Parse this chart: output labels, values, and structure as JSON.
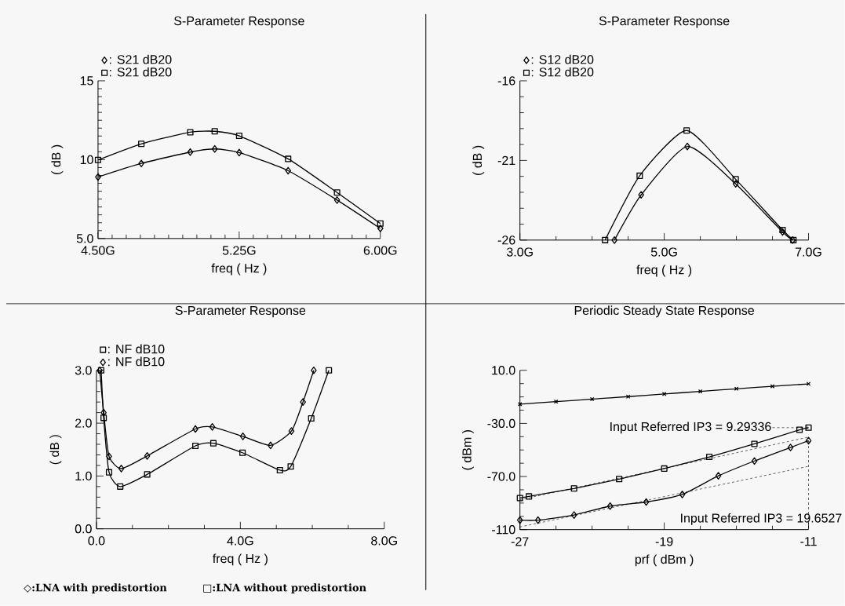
{
  "chart_data": [
    {
      "type": "line",
      "title": "S-Parameter Response",
      "xlabel": "freq ( Hz )",
      "ylabel": "( dB )",
      "legend": "top left",
      "xlim": [
        4.5,
        6.0
      ],
      "ylim": [
        5,
        15
      ],
      "xticks": [
        {
          "value": 4.5,
          "label": "4.50G"
        },
        {
          "value": 5.25,
          "label": "5.25G"
        },
        {
          "value": 6.0,
          "label": "6.00G"
        }
      ],
      "yticks": [
        {
          "value": 5,
          "label": "5.0"
        },
        10,
        15
      ],
      "series": [
        {
          "name": ": S21 dB20",
          "color": "#000000",
          "marker": "diamond",
          "x": [
            4.5,
            4.73,
            4.99,
            5.12,
            5.25,
            5.51,
            5.77,
            6.0
          ],
          "values": [
            8.9,
            9.76,
            10.48,
            10.68,
            10.45,
            9.3,
            7.44,
            5.64
          ]
        },
        {
          "name": ": S21 dB20",
          "color": "#000000",
          "marker": "square",
          "x": [
            4.5,
            4.73,
            4.99,
            5.12,
            5.25,
            5.51,
            5.77,
            6.0
          ],
          "values": [
            9.98,
            11.0,
            11.74,
            11.8,
            11.51,
            10.05,
            7.92,
            5.95
          ]
        }
      ]
    },
    {
      "type": "line",
      "title": "S-Parameter Response",
      "xlabel": "freq ( Hz )",
      "ylabel": "( dB )",
      "legend": "top left",
      "xlim": [
        3.0,
        7.0
      ],
      "ylim": [
        -26,
        -16
      ],
      "xticks": [
        {
          "value": 3,
          "label": "3.0G"
        },
        {
          "value": 5,
          "label": "5.0G"
        },
        {
          "value": 7,
          "label": "7.0G"
        }
      ],
      "yticks": [
        -26,
        -21,
        -16
      ],
      "series": [
        {
          "name": ": S12 dB20",
          "color": "#000000",
          "marker": "diamond",
          "x": [
            4.31,
            4.68,
            5.32,
            5.99,
            6.64,
            6.78
          ],
          "values": [
            -26,
            -23.16,
            -20.12,
            -22.47,
            -25.49,
            -26
          ]
        },
        {
          "name": ": S12 dB20",
          "color": "#000000",
          "marker": "square",
          "x": [
            4.18,
            4.66,
            5.31,
            5.99,
            6.64,
            6.79
          ],
          "values": [
            -26,
            -21.96,
            -19.12,
            -22.18,
            -25.37,
            -26
          ]
        }
      ]
    },
    {
      "type": "line",
      "title": "S-Parameter Response",
      "xlabel": "freq ( Hz )",
      "ylabel": "( dB )",
      "legend": "top left",
      "xlim": [
        0,
        8
      ],
      "ylim": [
        0,
        3
      ],
      "xticks": [
        {
          "value": 0,
          "label": "0.0"
        },
        {
          "value": 4,
          "label": "4.0G"
        },
        {
          "value": 8,
          "label": "8.0G"
        }
      ],
      "yticks": [
        {
          "value": 0,
          "label": "0.0"
        },
        {
          "value": 1,
          "label": "1.0"
        },
        {
          "value": 2,
          "label": "2.0"
        },
        {
          "value": 3,
          "label": "3.0"
        }
      ],
      "annotations": [
        "◇:LNA with predistortion",
        "□:LNA without predistortion"
      ],
      "series": [
        {
          "name": ": NF dB10",
          "color": "#000000",
          "marker": "square",
          "x": [
            0.13,
            0.2,
            0.35,
            0.66,
            1.41,
            2.75,
            3.25,
            4.06,
            5.1,
            5.4,
            5.97,
            6.46
          ],
          "values": [
            3.0,
            2.1,
            1.07,
            0.8,
            1.03,
            1.57,
            1.62,
            1.44,
            1.11,
            1.18,
            2.09,
            3.0
          ]
        },
        {
          "name": ": NF dB10",
          "color": "#000000",
          "marker": "diamond",
          "x": [
            0.09,
            0.2,
            0.35,
            0.69,
            1.41,
            2.75,
            3.22,
            4.07,
            4.84,
            5.42,
            5.74,
            6.04
          ],
          "values": [
            3.0,
            2.2,
            1.37,
            1.14,
            1.38,
            1.89,
            1.93,
            1.75,
            1.58,
            1.85,
            2.4,
            3.0
          ]
        }
      ]
    },
    {
      "type": "line",
      "title": "Periodic Steady State Response",
      "xlabel": "prf ( dBm )",
      "ylabel": "( dBm )",
      "xlim": [
        -27,
        -11
      ],
      "ylim": [
        -110,
        10
      ],
      "xticks": [
        -27,
        -19,
        -11
      ],
      "yticks": [
        {
          "value": 10,
          "label": "10.0"
        },
        {
          "value": -30,
          "label": "-30.0"
        },
        {
          "value": -70,
          "label": "-70.0"
        },
        -110
      ],
      "annotations": [
        {
          "text": "Input Referred IP3 = 9.29336",
          "x": -11,
          "y": -33.2
        },
        {
          "text": "Input Referred IP3 = 19.6527",
          "x": -11,
          "y": -43
        }
      ],
      "series": [
        {
          "color": "#000000",
          "marker": "cross",
          "x": [
            -27,
            -25,
            -23,
            -21,
            -19,
            -17,
            -15,
            -13,
            -11
          ],
          "values": [
            -15.5,
            -13.6,
            -11.7,
            -9.8,
            -7.8,
            -5.9,
            -3.9,
            -2.0,
            -0.2
          ]
        },
        {
          "color": "#000000",
          "marker": "square",
          "x": [
            -27,
            -26.5,
            -24,
            -21.5,
            -19,
            -16.5,
            -14,
            -11.5,
            -11
          ],
          "values": [
            -86.2,
            -85.0,
            -79.0,
            -71.9,
            -64.0,
            -55.2,
            -45.4,
            -34.8,
            -33.2
          ]
        },
        {
          "color": "#000000",
          "marker": "diamond",
          "x": [
            -27,
            -26,
            -24,
            -22,
            -20,
            -18,
            -16,
            -14,
            -12,
            -11
          ],
          "values": [
            -102.9,
            -102.9,
            -99.0,
            -92.3,
            -89.2,
            -83.5,
            -69.5,
            -58.3,
            -48.1,
            -43.0
          ]
        },
        {
          "color": "#000000",
          "marker": "none",
          "line_style": "dashed",
          "x": [
            -27,
            -11
          ],
          "values": [
            -87.5,
            -40.3
          ]
        },
        {
          "color": "#000000",
          "marker": "none",
          "line_style": "dashed",
          "x": [
            -27,
            -11
          ],
          "values": [
            -108,
            -62.3
          ]
        }
      ]
    }
  ]
}
